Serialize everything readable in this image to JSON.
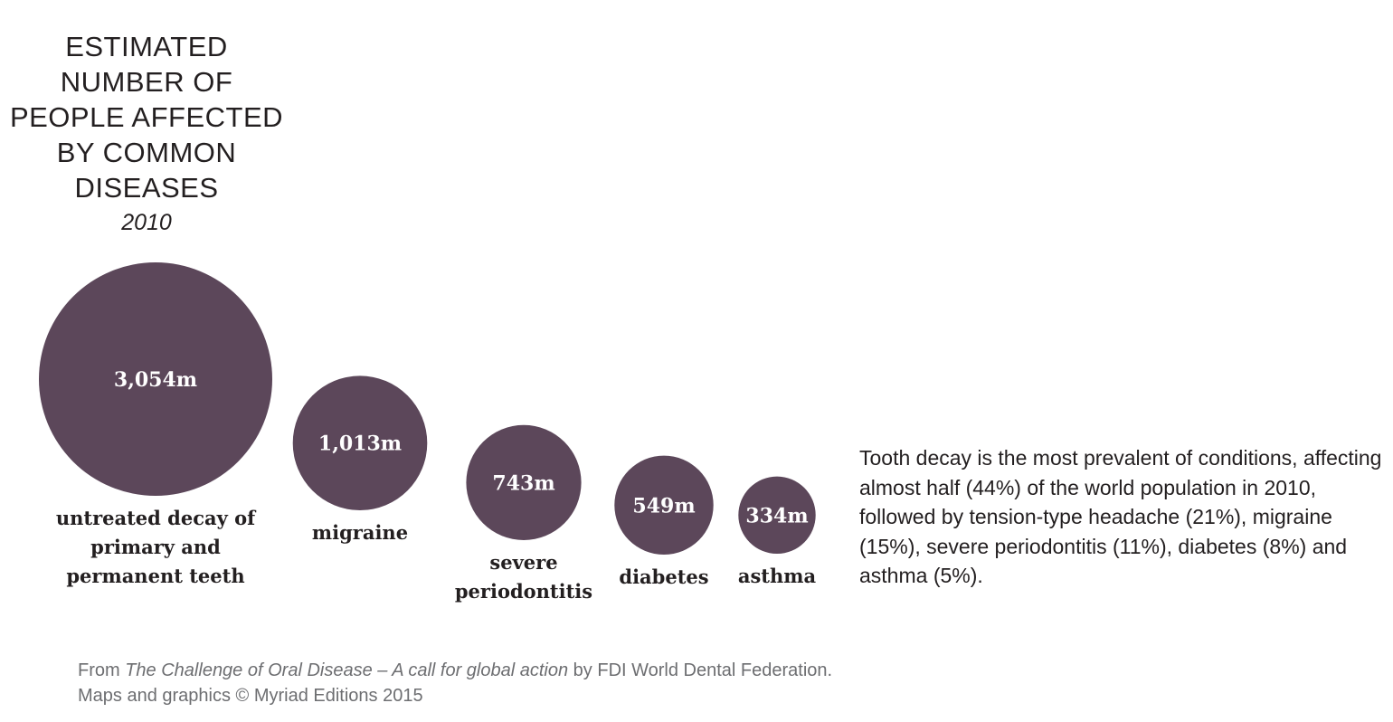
{
  "title": {
    "lines": [
      "ESTIMATED",
      "NUMBER OF",
      "PEOPLE AFFECTED",
      "BY COMMON",
      "DISEASES"
    ],
    "year": "2010"
  },
  "colors": {
    "bubble": "#5c475a",
    "text": "#231f20",
    "footer": "#6d6e71"
  },
  "chart_data": {
    "type": "bubble",
    "title": "ESTIMATED NUMBER OF PEOPLE AFFECTED BY COMMON DISEASES",
    "subtitle": "2010",
    "unit": "millions of people",
    "categories": [
      "untreated decay of primary and permanent teeth",
      "migraine",
      "severe periodontitis",
      "diabetes",
      "asthma"
    ],
    "values": [
      3054,
      1013,
      743,
      549,
      334
    ],
    "value_labels": [
      "3,054m",
      "1,013m",
      "743m",
      "549m",
      "334m"
    ],
    "label_lines": [
      [
        "untreated decay of",
        "primary and",
        "permanent teeth"
      ],
      [
        "migraine"
      ],
      [
        "severe",
        "periodontitis"
      ],
      [
        "diabetes"
      ],
      [
        "asthma"
      ]
    ]
  },
  "description": "Tooth decay is the most prevalent of conditions, affecting almost half (44%) of the world population in 2010, followed by tension-type headache (21%), migraine (15%), severe periodontitis (11%), diabetes (8%) and asthma (5%).",
  "footer": {
    "prefix": "From ",
    "book_title": "The Challenge of Oral Disease – A call for global action",
    "suffix": " by FDI World Dental Federation.",
    "credit": "Maps and graphics © Myriad Editions 2015"
  }
}
